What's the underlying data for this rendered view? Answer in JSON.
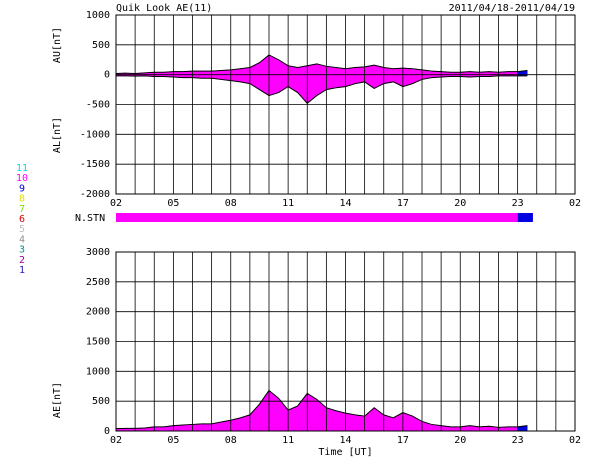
{
  "chart_data": [
    {
      "type": "area-range",
      "title": "Quik Look AE(11)",
      "subtitle": "2011/04/18-2011/04/19",
      "ylabel": "AU[nT]",
      "ylabel2": "AL[nT]",
      "x": [
        0,
        0.5,
        1,
        1.5,
        2,
        2.5,
        3,
        3.5,
        4,
        4.5,
        5,
        5.5,
        6,
        6.5,
        7,
        7.5,
        8,
        8.5,
        9,
        9.5,
        10,
        10.5,
        11,
        11.5,
        12,
        12.5,
        13,
        13.5,
        14,
        14.5,
        15,
        15.5,
        16,
        16.5,
        17,
        17.5,
        18,
        18.5,
        19,
        19.5,
        20,
        20.5,
        21,
        21.5
      ],
      "series": [
        {
          "name": "AU",
          "color": "#000000",
          "values": [
            20,
            25,
            20,
            30,
            40,
            40,
            50,
            50,
            60,
            60,
            60,
            70,
            80,
            100,
            120,
            200,
            330,
            250,
            150,
            120,
            150,
            180,
            140,
            120,
            100,
            120,
            130,
            160,
            120,
            100,
            110,
            100,
            80,
            60,
            50,
            40,
            40,
            50,
            40,
            50,
            40,
            50,
            50,
            70
          ]
        },
        {
          "name": "AL",
          "color": "#000000",
          "values": [
            -20,
            -20,
            -25,
            -20,
            -30,
            -30,
            -40,
            -50,
            -50,
            -60,
            -60,
            -80,
            -100,
            -120,
            -150,
            -250,
            -350,
            -300,
            -200,
            -300,
            -480,
            -350,
            -250,
            -220,
            -200,
            -150,
            -120,
            -230,
            -150,
            -120,
            -200,
            -150,
            -80,
            -50,
            -40,
            -30,
            -30,
            -40,
            -30,
            -30,
            -20,
            -20,
            -20,
            -20
          ]
        }
      ],
      "xlim": [
        0,
        24
      ],
      "xticks": [
        {
          "value": 0,
          "label": "02"
        },
        {
          "value": 3,
          "label": "05"
        },
        {
          "value": 6,
          "label": "08"
        },
        {
          "value": 9,
          "label": "11"
        },
        {
          "value": 12,
          "label": "14"
        },
        {
          "value": 15,
          "label": "17"
        },
        {
          "value": 18,
          "label": "20"
        },
        {
          "value": 21,
          "label": "23"
        },
        {
          "value": 24,
          "label": "02"
        }
      ],
      "x_grid_step": 1,
      "ylim": [
        -2000,
        1000
      ],
      "yticks": [
        -2000,
        -1500,
        -1000,
        -500,
        0,
        500,
        1000
      ],
      "grid": true
    },
    {
      "type": "area",
      "ylabel": "AE[nT]",
      "xlabel": "Time [UT]",
      "x": [
        0,
        0.5,
        1,
        1.5,
        2,
        2.5,
        3,
        3.5,
        4,
        4.5,
        5,
        5.5,
        6,
        6.5,
        7,
        7.5,
        8,
        8.5,
        9,
        9.5,
        10,
        10.5,
        11,
        11.5,
        12,
        12.5,
        13,
        13.5,
        14,
        14.5,
        15,
        15.5,
        16,
        16.5,
        17,
        17.5,
        18,
        18.5,
        19,
        19.5,
        20,
        20.5,
        21,
        21.5
      ],
      "series": [
        {
          "name": "AE",
          "color": "#000000",
          "values": [
            40,
            45,
            45,
            50,
            70,
            70,
            90,
            100,
            110,
            120,
            120,
            150,
            180,
            220,
            270,
            450,
            680,
            550,
            350,
            420,
            630,
            530,
            390,
            340,
            300,
            270,
            250,
            390,
            270,
            220,
            310,
            250,
            160,
            110,
            90,
            70,
            70,
            90,
            70,
            80,
            60,
            70,
            70,
            90
          ]
        }
      ],
      "xlim": [
        0,
        24
      ],
      "xticks": [
        {
          "value": 0,
          "label": "02"
        },
        {
          "value": 3,
          "label": "05"
        },
        {
          "value": 6,
          "label": "08"
        },
        {
          "value": 9,
          "label": "11"
        },
        {
          "value": 12,
          "label": "14"
        },
        {
          "value": 15,
          "label": "17"
        },
        {
          "value": 18,
          "label": "20"
        },
        {
          "value": 21,
          "label": "23"
        },
        {
          "value": 24,
          "label": "02"
        }
      ],
      "x_grid_step": 1,
      "ylim": [
        0,
        3000
      ],
      "yticks": [
        0,
        500,
        1000,
        1500,
        2000,
        2500,
        3000
      ],
      "grid": true
    }
  ],
  "n_stn": {
    "label": "N.STN",
    "segments": [
      {
        "start": 0,
        "end": 21,
        "count": 10
      },
      {
        "start": 21,
        "end": 21.8,
        "count": 9
      }
    ]
  },
  "station_legend": [
    {
      "label": "11",
      "count": 11,
      "color": "#00e0e0"
    },
    {
      "label": "10",
      "count": 10,
      "color": "#ff00ff"
    },
    {
      "label": "9",
      "count": 9,
      "color": "#0000e0"
    },
    {
      "label": "8",
      "count": 8,
      "color": "#e0e000"
    },
    {
      "label": "7",
      "count": 7,
      "color": "#80e000"
    },
    {
      "label": "6",
      "count": 6,
      "color": "#e00000"
    },
    {
      "label": "5",
      "count": 5,
      "color": "#c0c0c0"
    },
    {
      "label": "4",
      "count": 4,
      "color": "#909090"
    },
    {
      "label": "3",
      "count": 3,
      "color": "#009090"
    },
    {
      "label": "2",
      "count": 2,
      "color": "#a000a0"
    },
    {
      "label": "1",
      "count": 1,
      "color": "#2020c0"
    }
  ]
}
